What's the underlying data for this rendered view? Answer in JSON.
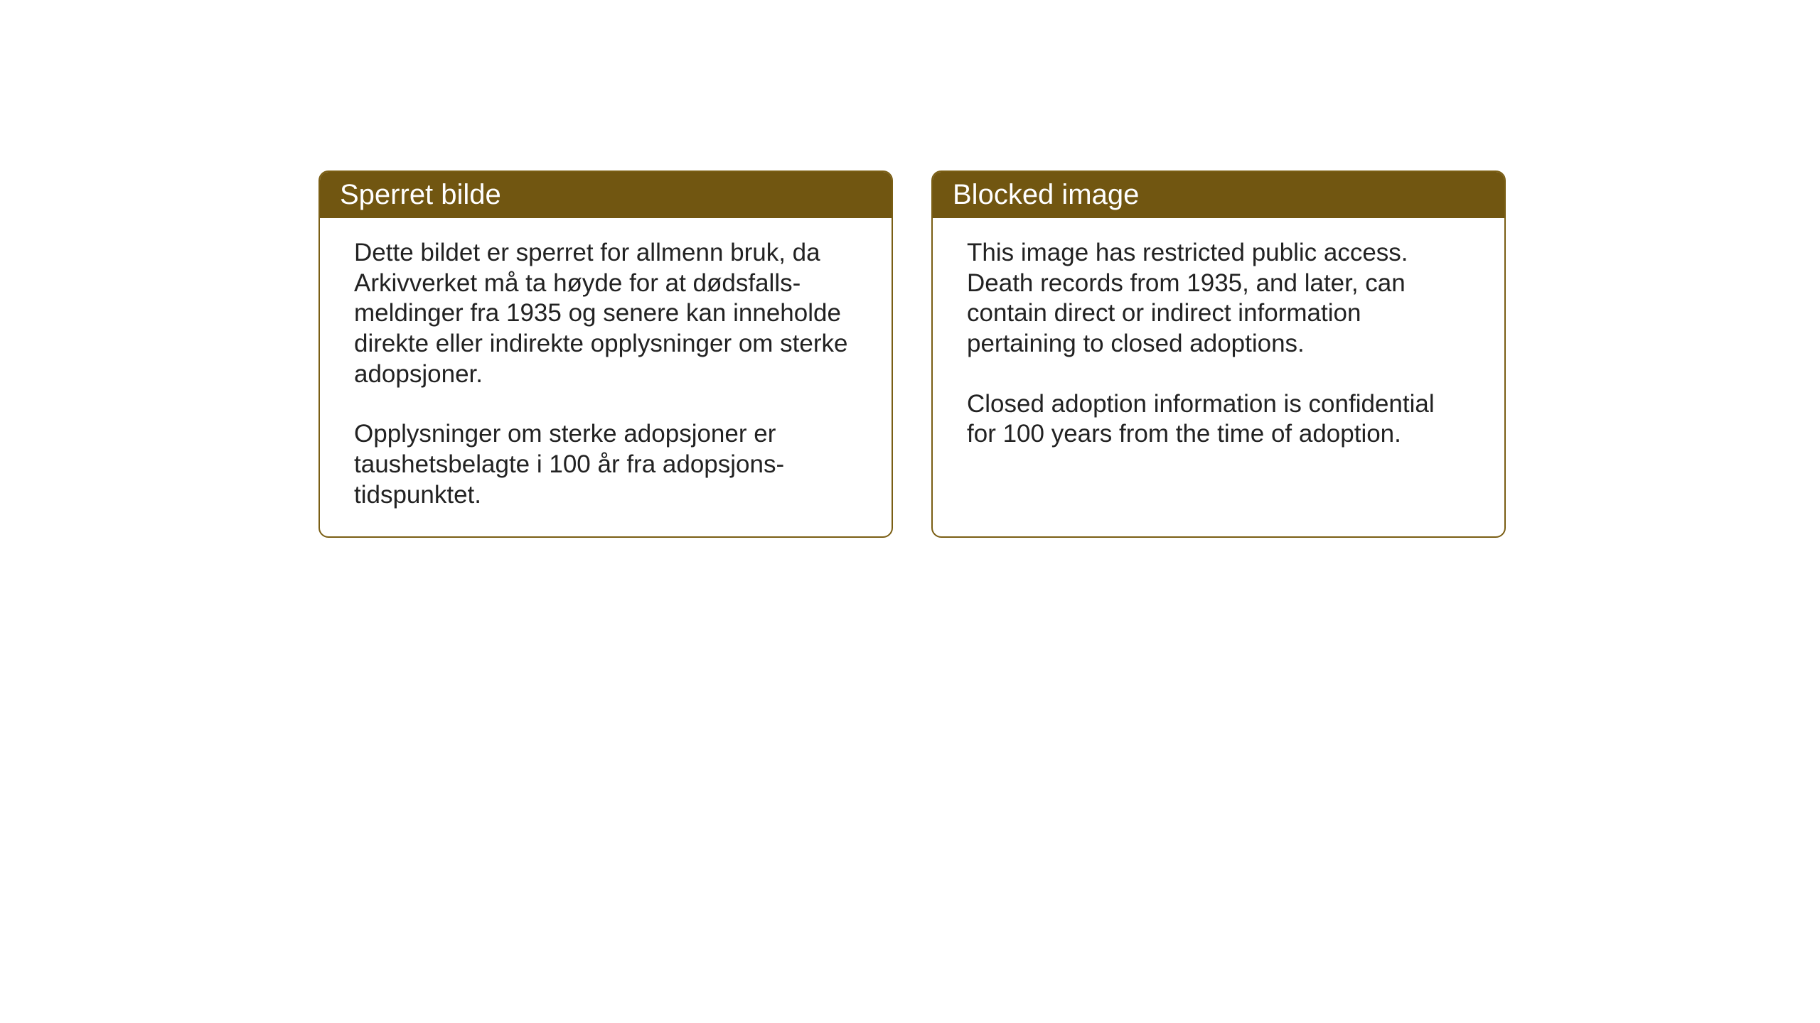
{
  "layout": {
    "background_color": "#ffffff",
    "box_border_color": "#7a5e14",
    "box_header_bg_color": "#715611",
    "box_header_text_color": "#ffffff",
    "body_text_color": "#222222",
    "header_fontsize": 40,
    "body_fontsize": 35,
    "border_radius": 14
  },
  "boxes": {
    "left": {
      "title": "Sperret bilde",
      "paragraph1": "Dette bildet er sperret for allmenn bruk, da Arkivverket må ta høyde for at dødsfalls-meldinger fra 1935 og senere kan inneholde direkte eller indirekte opplysninger om sterke adopsjoner.",
      "paragraph2": "Opplysninger om sterke adopsjoner er taushetsbelagte i 100 år fra adopsjons-tidspunktet."
    },
    "right": {
      "title": "Blocked image",
      "paragraph1": "This image has restricted public access. Death records from 1935, and later, can contain direct or indirect information pertaining to closed adoptions.",
      "paragraph2": "Closed adoption information is confidential for 100 years from the time of adoption."
    }
  }
}
